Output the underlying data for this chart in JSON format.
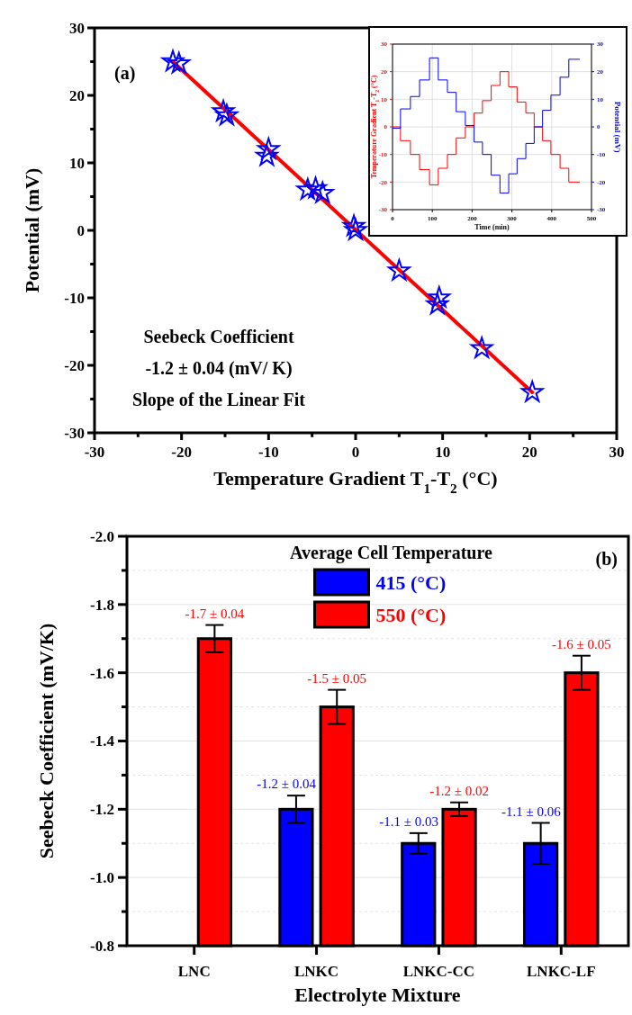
{
  "chart_data": [
    {
      "type": "scatter",
      "xlabel": "Temperature Gradient T$_{1}$-T$_{2}$ (°C)",
      "ylabel": "Potential (mV)",
      "xlim": [
        -30,
        30
      ],
      "ylim": [
        -30,
        30
      ],
      "xticks": [
        -30,
        {
          "value": -25,
          "label": null
        },
        -20,
        {
          "value": -15,
          "label": null
        },
        -10,
        {
          "value": -5,
          "label": null
        },
        0,
        {
          "value": 5,
          "label": null
        },
        10,
        {
          "value": 15,
          "label": null
        },
        20,
        {
          "value": 25,
          "label": null
        },
        30
      ],
      "yticks": [
        -30,
        {
          "value": -25,
          "label": null
        },
        -20,
        {
          "value": -15,
          "label": null
        },
        -10,
        {
          "value": -5,
          "label": null
        },
        0,
        {
          "value": 5,
          "label": null
        },
        10,
        {
          "value": 15,
          "label": null
        },
        20,
        {
          "value": 25,
          "label": null
        },
        30
      ],
      "grid": false,
      "annotations": [
        "(a)",
        "Seebeck Coefficient",
        "-1.2 ± 0.04  (mV/ K)",
        "Slope of the Linear Fit"
      ],
      "series": [
        {
          "type": "scatter",
          "color": "#0000ff",
          "marker": "star",
          "x": [
            -21,
            -20.3,
            -15.2,
            -14.8,
            -10.2,
            -10,
            -5.5,
            -4.6,
            -3.8,
            0,
            -0.2,
            5,
            9.4,
            9.6,
            14.5,
            20.3
          ],
          "values": [
            25,
            24.7,
            17.6,
            17,
            11,
            12,
            6,
            6.2,
            5.5,
            0,
            0.6,
            -6,
            -11,
            -10,
            -17.5,
            -24
          ]
        },
        {
          "type": "line",
          "color": "#ff0000",
          "marker": "none",
          "x": [
            -21,
            20.3
          ],
          "values": [
            25,
            -24
          ]
        }
      ]
    },
    {
      "type": "step",
      "xlabel": "Time (min)",
      "ylabel": "Temperature Gradient T$_{1}$-T$_{2}$ (°C)",
      "y2label": "Potential (mV)",
      "xlim": [
        0,
        500
      ],
      "ylim": [
        -30,
        30
      ],
      "y2lim": [
        -30,
        30
      ],
      "xticks": [
        0,
        100,
        200,
        300,
        400,
        500
      ],
      "yticks": [
        -30,
        -20,
        -10,
        0,
        10,
        20,
        30
      ],
      "y2ticks": [
        -30,
        -20,
        -10,
        0,
        10,
        20,
        30
      ],
      "grid": true,
      "series": [
        {
          "color": "#ff0000",
          "x": [
            0,
            20,
            45,
            68,
            93,
            115,
            138,
            160,
            183,
            205,
            226,
            248,
            270,
            292,
            313,
            335,
            356,
            377,
            398,
            421,
            443,
            470
          ],
          "values": [
            0,
            -5,
            -10,
            -15.5,
            -21,
            -15,
            -10,
            -4,
            0,
            5,
            9.5,
            15,
            20,
            14.5,
            9,
            5,
            0,
            -5,
            -10,
            -15,
            -20,
            -20
          ]
        },
        {
          "color": "#0000ff",
          "axis": "y2",
          "x": [
            0,
            20,
            45,
            68,
            93,
            115,
            138,
            160,
            183,
            205,
            226,
            248,
            270,
            292,
            313,
            335,
            356,
            377,
            398,
            421,
            443,
            470
          ],
          "values": [
            -0.5,
            6.5,
            11,
            17,
            25,
            17,
            12.5,
            5.5,
            0.5,
            -5.5,
            -10,
            -17.5,
            -24,
            -17,
            -11.5,
            -6,
            0,
            6,
            11.5,
            18,
            24.5,
            24.5
          ]
        }
      ]
    },
    {
      "type": "bar",
      "xlabel": "Electrolyte Mixture",
      "ylabel": "Seebeck Coefficient (mV/K)",
      "categories": [
        "LNC",
        "LNKC",
        "LNKC-CC",
        "LNKC-LF"
      ],
      "ylim": [
        -0.8,
        -2.0
      ],
      "yticks": [
        {
          "value": -0.8,
          "label": "-0.8"
        },
        {
          "value": -0.9,
          "label": null
        },
        {
          "value": -1.0,
          "label": "-1.0"
        },
        {
          "value": -1.1,
          "label": null
        },
        {
          "value": -1.2,
          "label": "-1.2"
        },
        {
          "value": -1.3,
          "label": null
        },
        {
          "value": -1.4,
          "label": "-1.4"
        },
        {
          "value": -1.5,
          "label": null
        },
        {
          "value": -1.6,
          "label": "-1.6"
        },
        {
          "value": -1.7,
          "label": null
        },
        {
          "value": -1.8,
          "label": "-1.8"
        },
        {
          "value": -1.9,
          "label": null
        },
        {
          "value": -2.0,
          "label": "-2.0"
        }
      ],
      "grid": "y",
      "legend": "top",
      "legend_title": "Average Cell Temperature",
      "annotations": [
        "(b)"
      ],
      "series": [
        {
          "name": "415 (°C)",
          "color": "#0000ff",
          "values": [
            null,
            -1.2,
            -1.1,
            -1.1
          ],
          "errors": [
            null,
            0.04,
            0.03,
            0.06
          ],
          "value_labels": [
            null,
            "-1.2 ± 0.04",
            "-1.1 ± 0.03",
            "-1.1 ± 0.06"
          ]
        },
        {
          "name": "550 (°C)",
          "color": "#ff0000",
          "values": [
            -1.7,
            -1.5,
            -1.2,
            -1.6
          ],
          "errors": [
            0.04,
            0.05,
            0.02,
            0.05
          ],
          "value_labels": [
            "-1.7 ± 0.04",
            "-1.5 ± 0.05",
            "-1.2 ± 0.02",
            "-1.6 ± 0.05"
          ]
        }
      ]
    }
  ]
}
